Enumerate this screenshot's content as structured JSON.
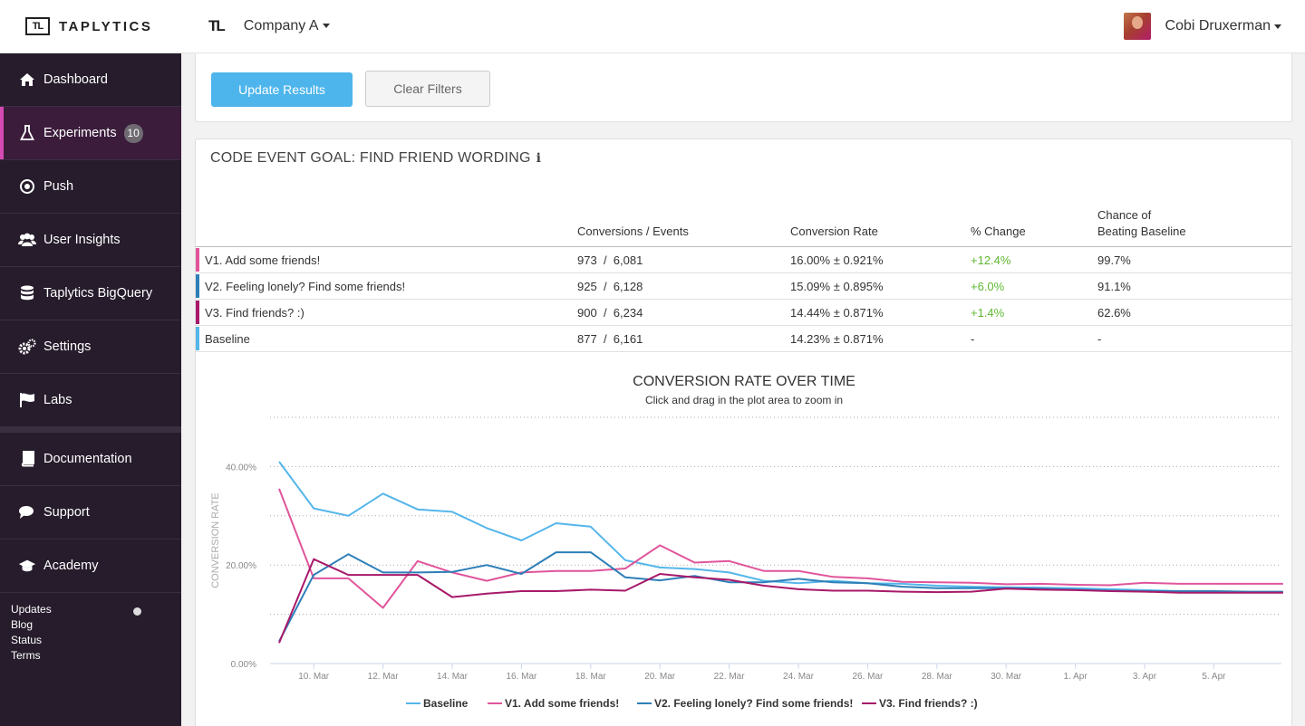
{
  "brand": {
    "name": "TAPLYTICS",
    "logo_text": "TL"
  },
  "sidebar": {
    "items": [
      {
        "label": "Dashboard",
        "icon": "home-icon"
      },
      {
        "label": "Experiments",
        "icon": "flask-icon",
        "badge": "10",
        "active": true
      },
      {
        "label": "Push",
        "icon": "target-icon"
      },
      {
        "label": "User Insights",
        "icon": "users-icon"
      },
      {
        "label": "Taplytics BigQuery",
        "icon": "database-icon"
      },
      {
        "label": "Settings",
        "icon": "gears-icon"
      },
      {
        "label": "Labs",
        "icon": "flag-icon"
      },
      {
        "label": "Documentation",
        "icon": "book-icon"
      },
      {
        "label": "Support",
        "icon": "chat-icon"
      },
      {
        "label": "Academy",
        "icon": "graduation-cap-icon"
      }
    ],
    "footer_links": [
      "Updates",
      "Blog",
      "Status",
      "Terms"
    ]
  },
  "topbar": {
    "logo_text": "TL",
    "company": "Company A",
    "user_name": "Cobi Druxerman"
  },
  "filters": {
    "update_label": "Update Results",
    "clear_label": "Clear Filters"
  },
  "goal": {
    "title": "CODE EVENT GOAL: FIND FRIEND WORDING",
    "info_icon": "i",
    "headers": {
      "conversions": "Conversions / Events",
      "rate": "Conversion Rate",
      "change": "% Change",
      "chance_line1": "Chance of",
      "chance_line2": "Beating Baseline"
    },
    "rows": [
      {
        "name": "V1. Add some friends!",
        "conversions": "973",
        "events": "6,081",
        "rate": "16.00% ± 0.921%",
        "change": "+12.4%",
        "chance": "99.7%",
        "color": "#e0559b"
      },
      {
        "name": "V2. Feeling lonely? Find some friends!",
        "conversions": "925",
        "events": "6,128",
        "rate": "15.09% ± 0.895%",
        "change": "+6.0%",
        "chance": "91.1%",
        "color": "#2d7fb8"
      },
      {
        "name": "V3. Find friends? :)",
        "conversions": "900",
        "events": "6,234",
        "rate": "14.44% ± 0.871%",
        "change": "+1.4%",
        "chance": "62.6%",
        "color": "#a8196a"
      },
      {
        "name": "Baseline",
        "conversions": "877",
        "events": "6,161",
        "rate": "14.23% ± 0.871%",
        "change": "-",
        "chance": "-",
        "color": "#55b6ea"
      }
    ],
    "conv_sep": "/"
  },
  "chart_data": {
    "type": "line",
    "title": "CONVERSION RATE OVER TIME",
    "subtitle": "Click and drag in the plot area to zoom in",
    "ylabel": "CONVERSION RATE",
    "ylim": [
      0,
      50
    ],
    "yticks": [
      "0.00%",
      "20.00%",
      "40.00%"
    ],
    "yticks_values": [
      0,
      20,
      40
    ],
    "x_tick_labels": [
      "10. Mar",
      "12. Mar",
      "14. Mar",
      "16. Mar",
      "18. Mar",
      "20. Mar",
      "22. Mar",
      "24. Mar",
      "26. Mar",
      "28. Mar",
      "30. Mar",
      "1. Apr",
      "3. Apr",
      "5. Apr"
    ],
    "x_tick_index": [
      1,
      3,
      5,
      7,
      9,
      11,
      13,
      15,
      17,
      19,
      21,
      23,
      25,
      27
    ],
    "x_count": 30,
    "legend_position": "bottom",
    "series": [
      {
        "name": "Baseline",
        "color": "#55b6ea",
        "values": [
          41,
          31.5,
          30,
          34.5,
          31.3,
          30.8,
          27.5,
          25,
          28.5,
          27.8,
          21,
          19.5,
          19.2,
          18.5,
          16.8,
          16.3,
          16.8,
          16.3,
          16.2,
          15.8,
          15.6,
          15.5,
          15.4,
          15.3,
          15.1,
          14.9,
          14.7,
          14.6,
          14.5,
          14.5
        ]
      },
      {
        "name": "V1. Add some friends!",
        "color": "#e0559b",
        "values": [
          35.5,
          17.3,
          17.3,
          11.3,
          20.8,
          18.5,
          16.8,
          18.5,
          18.8,
          18.8,
          19.3,
          24,
          20.5,
          20.8,
          18.8,
          18.8,
          17.6,
          17.3,
          16.6,
          16.5,
          16.4,
          16.1,
          16.2,
          16.0,
          15.9,
          16.4,
          16.2,
          16.2,
          16.2,
          16.2
        ]
      },
      {
        "name": "V2. Feeling lonely? Find some friends!",
        "color": "#2d7fb8",
        "values": [
          4.5,
          18,
          22.2,
          18.5,
          18.5,
          18.6,
          20,
          18.2,
          22.6,
          22.6,
          17.5,
          16.9,
          17.8,
          16.5,
          16.5,
          17.2,
          16.5,
          16.3,
          15.6,
          15.3,
          15.3,
          15.3,
          15.2,
          15.0,
          14.8,
          14.7,
          14.7,
          14.7,
          14.6,
          14.6
        ]
      },
      {
        "name": "V3. Find friends? :)",
        "color": "#a8196a",
        "values": [
          4.2,
          21.2,
          18,
          18,
          18,
          13.5,
          14.2,
          14.7,
          14.7,
          15,
          14.8,
          18.2,
          17.5,
          17,
          15.8,
          15.1,
          14.8,
          14.8,
          14.6,
          14.5,
          14.6,
          15.2,
          15.0,
          14.9,
          14.7,
          14.6,
          14.4,
          14.4,
          14.4,
          14.4
        ]
      }
    ]
  }
}
